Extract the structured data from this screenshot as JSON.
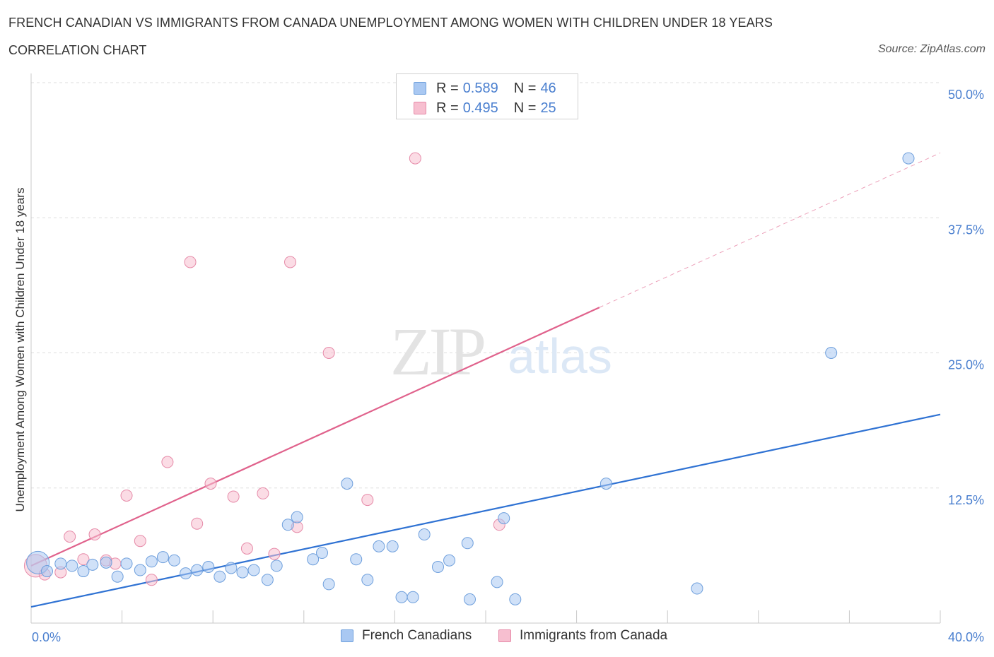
{
  "header": {
    "title": "FRENCH CANADIAN VS IMMIGRANTS FROM CANADA UNEMPLOYMENT AMONG WOMEN WITH CHILDREN UNDER 18 YEARS",
    "subtitle": "CORRELATION CHART",
    "source": "Source: ZipAtlas.com"
  },
  "watermark": {
    "zip": "ZIP",
    "atlas": "atlas"
  },
  "stats_legend": [
    {
      "r_label": "R = ",
      "r_value": "0.589",
      "n_label": "N = ",
      "n_value": "46",
      "color": "#a9c8f2",
      "border": "#6e9fdc"
    },
    {
      "r_label": "R = ",
      "r_value": "0.495",
      "n_label": "N = ",
      "n_value": "25",
      "color": "#f7bfd0",
      "border": "#e68aa8"
    }
  ],
  "bottom_legend": [
    {
      "label": "French Canadians",
      "color": "#a9c8f2",
      "border": "#6e9fdc"
    },
    {
      "label": "Immigrants from Canada",
      "color": "#f7bfd0",
      "border": "#e68aa8"
    }
  ],
  "chart_data": {
    "type": "scatter",
    "title": "FRENCH CANADIAN VS IMMIGRANTS FROM CANADA UNEMPLOYMENT AMONG WOMEN WITH CHILDREN UNDER 18 YEARS",
    "xlabel": "",
    "ylabel": "Unemployment Among Women with Children Under 18 years",
    "xlim": [
      0,
      40
    ],
    "ylim": [
      0,
      50
    ],
    "x_tick_labels": [
      "0.0%",
      "40.0%"
    ],
    "y_tick_labels": [
      "12.5%",
      "25.0%",
      "37.5%",
      "50.0%"
    ],
    "y_ticks": [
      12.5,
      25.0,
      37.5,
      50.0
    ],
    "grid": "horizontal dashed",
    "legend_position": "top-center",
    "series": [
      {
        "name": "French Canadians",
        "color": "#a9c8f2",
        "stroke": "#6e9fdc",
        "line_color": "#2f72d3",
        "trend": {
          "x": [
            0,
            40
          ],
          "y": [
            1.5,
            19.3
          ],
          "dashed_extension": false
        },
        "points": [
          {
            "x": 0.3,
            "y": 5.6,
            "big": true
          },
          {
            "x": 0.7,
            "y": 4.8
          },
          {
            "x": 1.3,
            "y": 5.5
          },
          {
            "x": 1.8,
            "y": 5.3
          },
          {
            "x": 2.3,
            "y": 4.8
          },
          {
            "x": 2.7,
            "y": 5.4
          },
          {
            "x": 3.3,
            "y": 5.6
          },
          {
            "x": 3.8,
            "y": 4.3
          },
          {
            "x": 4.2,
            "y": 5.5
          },
          {
            "x": 4.8,
            "y": 4.9
          },
          {
            "x": 5.3,
            "y": 5.7
          },
          {
            "x": 5.8,
            "y": 6.1
          },
          {
            "x": 6.3,
            "y": 5.8
          },
          {
            "x": 6.8,
            "y": 4.6
          },
          {
            "x": 7.3,
            "y": 4.9
          },
          {
            "x": 7.8,
            "y": 5.2
          },
          {
            "x": 8.3,
            "y": 4.3
          },
          {
            "x": 8.8,
            "y": 5.1
          },
          {
            "x": 9.3,
            "y": 4.7
          },
          {
            "x": 9.8,
            "y": 4.9
          },
          {
            "x": 10.4,
            "y": 4.0
          },
          {
            "x": 10.8,
            "y": 5.3
          },
          {
            "x": 11.3,
            "y": 9.1
          },
          {
            "x": 11.7,
            "y": 9.8
          },
          {
            "x": 12.4,
            "y": 5.9
          },
          {
            "x": 12.8,
            "y": 6.5
          },
          {
            "x": 13.1,
            "y": 3.6
          },
          {
            "x": 13.9,
            "y": 12.9
          },
          {
            "x": 14.3,
            "y": 5.9
          },
          {
            "x": 14.8,
            "y": 4.0
          },
          {
            "x": 15.3,
            "y": 7.1
          },
          {
            "x": 15.9,
            "y": 7.1
          },
          {
            "x": 16.3,
            "y": 2.4
          },
          {
            "x": 16.8,
            "y": 2.4
          },
          {
            "x": 17.3,
            "y": 8.2
          },
          {
            "x": 17.9,
            "y": 5.2
          },
          {
            "x": 18.4,
            "y": 5.8
          },
          {
            "x": 19.2,
            "y": 7.4
          },
          {
            "x": 19.3,
            "y": 2.2
          },
          {
            "x": 20.5,
            "y": 3.8
          },
          {
            "x": 20.8,
            "y": 9.7
          },
          {
            "x": 21.3,
            "y": 2.2
          },
          {
            "x": 25.3,
            "y": 12.9
          },
          {
            "x": 29.3,
            "y": 3.2
          },
          {
            "x": 35.2,
            "y": 25.0
          },
          {
            "x": 38.6,
            "y": 43.0
          }
        ]
      },
      {
        "name": "Immigrants from Canada",
        "color": "#f7bfd0",
        "stroke": "#e68aa8",
        "line_color": "#e0628c",
        "trend": {
          "x": [
            0,
            25
          ],
          "y": [
            5.3,
            29.2
          ],
          "extension_to_x": 40,
          "extension_y": 43.5,
          "dashed_extension": true
        },
        "points": [
          {
            "x": 0.2,
            "y": 5.3,
            "big": true
          },
          {
            "x": 0.6,
            "y": 4.5
          },
          {
            "x": 1.3,
            "y": 4.7
          },
          {
            "x": 1.7,
            "y": 8.0
          },
          {
            "x": 2.3,
            "y": 5.9
          },
          {
            "x": 2.8,
            "y": 8.2
          },
          {
            "x": 3.3,
            "y": 5.8
          },
          {
            "x": 3.7,
            "y": 5.5
          },
          {
            "x": 4.2,
            "y": 11.8
          },
          {
            "x": 4.8,
            "y": 7.6
          },
          {
            "x": 5.3,
            "y": 4.0
          },
          {
            "x": 6.0,
            "y": 14.9
          },
          {
            "x": 7.0,
            "y": 33.4
          },
          {
            "x": 7.3,
            "y": 9.2
          },
          {
            "x": 7.9,
            "y": 12.9
          },
          {
            "x": 8.9,
            "y": 11.7
          },
          {
            "x": 9.5,
            "y": 6.9
          },
          {
            "x": 10.2,
            "y": 12.0
          },
          {
            "x": 10.7,
            "y": 6.4
          },
          {
            "x": 11.4,
            "y": 33.4
          },
          {
            "x": 11.7,
            "y": 8.9
          },
          {
            "x": 13.1,
            "y": 25.0
          },
          {
            "x": 14.8,
            "y": 11.4
          },
          {
            "x": 16.9,
            "y": 43.0
          },
          {
            "x": 20.6,
            "y": 9.1
          }
        ]
      }
    ]
  }
}
